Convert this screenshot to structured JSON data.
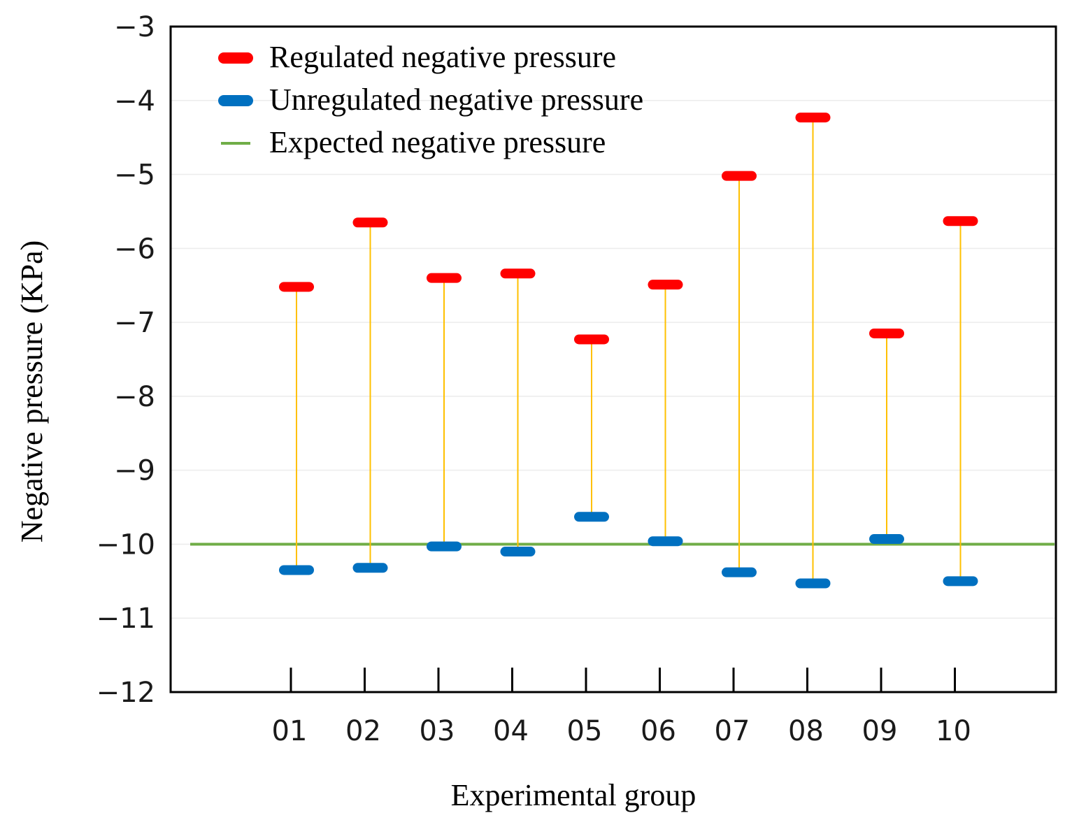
{
  "chart_data": {
    "type": "scatter",
    "xlabel": "Experimental group",
    "ylabel": "Negative pressure (KPa)",
    "categories": [
      "01",
      "02",
      "03",
      "04",
      "05",
      "06",
      "07",
      "08",
      "09",
      "10"
    ],
    "ylim": [
      -12,
      -3
    ],
    "yticks": [
      "−3",
      "−4",
      "−5",
      "−6",
      "−7",
      "−8",
      "−9",
      "−10",
      "−11",
      "−12"
    ],
    "ytick_values": [
      -3,
      -4,
      -5,
      -6,
      -7,
      -8,
      -9,
      -10,
      -11,
      -12
    ],
    "grid": true,
    "legend_position": "top-left",
    "series": [
      {
        "name": "Regulated negative pressure",
        "color": "#ff0000",
        "marker": "dash",
        "values": [
          -6.52,
          -5.65,
          -6.4,
          -6.34,
          -7.23,
          -6.49,
          -5.02,
          -4.23,
          -7.15,
          -5.63
        ]
      },
      {
        "name": "Unregulated negative pressure",
        "color": "#0070c0",
        "marker": "dash",
        "values": [
          -10.35,
          -10.32,
          -10.03,
          -10.1,
          -9.63,
          -9.96,
          -10.38,
          -10.53,
          -9.93,
          -10.5
        ]
      },
      {
        "name": "Expected negative pressure",
        "color": "#70ad47",
        "marker": "line",
        "value": -10.0
      }
    ],
    "connector_color": "#ffc000"
  }
}
